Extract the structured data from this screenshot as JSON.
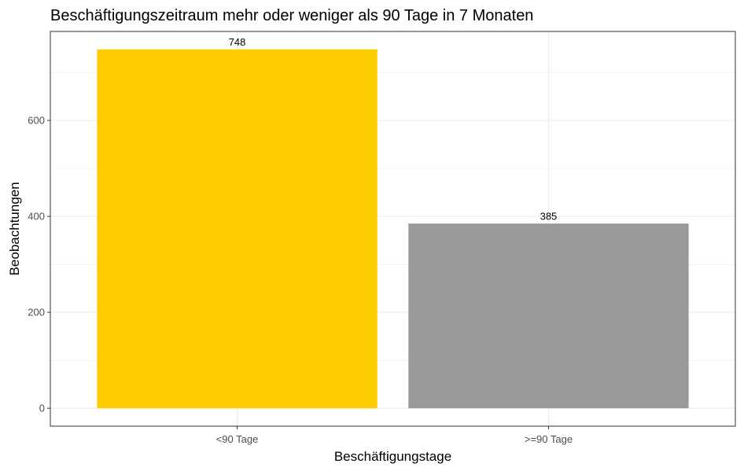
{
  "chart_data": {
    "type": "bar",
    "title": "Beschäftigungszeitraum mehr oder weniger als 90 Tage in 7 Monaten",
    "xlabel": "Beschäftigungstage",
    "ylabel": "Beobachtungen",
    "categories": [
      "<90 Tage",
      ">=90 Tage"
    ],
    "values": [
      748,
      385
    ],
    "data_labels": [
      "748",
      "385"
    ],
    "colors": [
      "#FFCC00",
      "#999999"
    ],
    "ylim": [
      -37.4,
      785.4
    ],
    "yticks": [
      0,
      200,
      400,
      600
    ],
    "ytick_labels": [
      "0",
      "200",
      "400",
      "600"
    ],
    "grid": true,
    "panel_border_color": "#333333",
    "grid_color": "#ebebeb"
  }
}
